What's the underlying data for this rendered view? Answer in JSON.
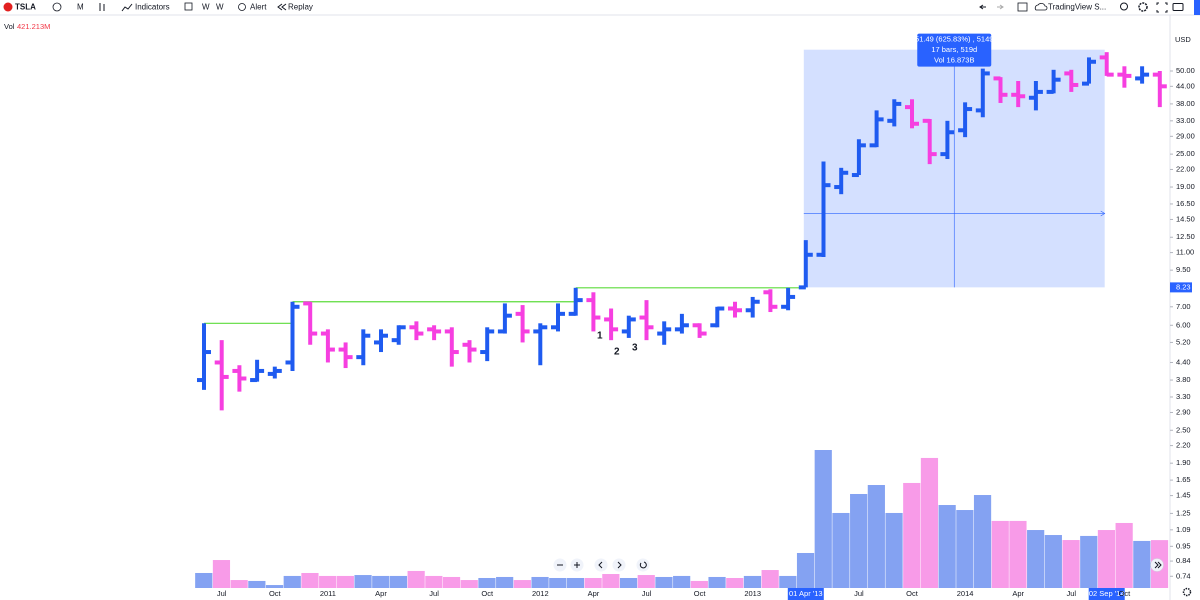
{
  "toolbar": {
    "symbol": "TSLA",
    "interval": "M",
    "indicators": "Indicators",
    "chart_type_a": "W",
    "chart_type_b": "W",
    "alert": "Alert",
    "replay": "Replay",
    "layout_name": "TradingView S..."
  },
  "chart_data": {
    "type": "ohlc",
    "log_scale": true,
    "grid": false,
    "currency": "USD",
    "up_color": "#1f5bf0",
    "down_color": "#f63fe0",
    "categories": [
      null,
      "Jul",
      null,
      null,
      "Oct",
      null,
      null,
      "2011",
      null,
      null,
      "Apr",
      null,
      null,
      "Jul",
      null,
      null,
      "Oct",
      null,
      null,
      "2012",
      null,
      null,
      "Apr",
      null,
      null,
      "Jul",
      null,
      null,
      "Oct",
      null,
      null,
      "2013",
      null,
      null,
      "01 Apr '13",
      null,
      null,
      "Jul",
      null,
      null,
      "Oct",
      null,
      null,
      "2014",
      null,
      null,
      "Apr",
      null,
      null,
      "Jul",
      null,
      "02 Sep '14",
      "Oct",
      null,
      null
    ],
    "open": [
      3.8,
      4.4,
      4.1,
      3.8,
      4.0,
      4.4,
      7.2,
      5.6,
      4.9,
      4.6,
      5.2,
      5.3,
      5.9,
      5.8,
      5.7,
      5.1,
      4.8,
      5.7,
      6.6,
      5.7,
      5.9,
      6.6,
      7.4,
      6.3,
      5.7,
      6.4,
      5.6,
      5.8,
      6.0,
      6.0,
      6.9,
      6.8,
      7.9,
      7.0,
      8.23,
      10.8,
      19,
      21,
      26.9,
      33,
      37,
      33,
      25,
      30.5,
      36,
      47,
      41,
      40,
      42,
      49,
      45,
      56,
      48.5,
      47,
      48.5
    ],
    "high": [
      6.1,
      5.3,
      4.3,
      4.5,
      4.25,
      7.3,
      7.3,
      5.8,
      5.2,
      5.8,
      5.8,
      6.0,
      6.2,
      6.0,
      5.9,
      5.3,
      5.9,
      7.2,
      7.1,
      6.1,
      7.2,
      8.2,
      7.9,
      6.9,
      6.5,
      7.4,
      6.2,
      6.6,
      6.1,
      7.0,
      7.3,
      7.6,
      8.1,
      8.2,
      12.2,
      23.5,
      22.3,
      28.3,
      36,
      39.5,
      39.5,
      33.5,
      33,
      38.5,
      51,
      47.5,
      46,
      46,
      50.5,
      50.5,
      56,
      58.5,
      52,
      52,
      50
    ],
    "low": [
      3.5,
      2.95,
      3.45,
      3.75,
      3.85,
      4.1,
      5.1,
      4.4,
      4.2,
      4.3,
      4.8,
      5.1,
      5.3,
      5.3,
      4.25,
      4.4,
      4.45,
      5.6,
      5.2,
      4.3,
      5.7,
      6.5,
      5.7,
      5.3,
      5.4,
      5.3,
      5.1,
      5.6,
      5.4,
      5.9,
      6.4,
      6.4,
      6.7,
      6.8,
      8.23,
      10.6,
      17.9,
      21,
      26.5,
      31.5,
      31,
      23,
      24,
      28.8,
      34,
      38.3,
      37,
      36,
      41.5,
      42,
      45,
      48,
      43.5,
      45,
      37
    ],
    "close": [
      4.8,
      3.9,
      3.85,
      4.1,
      4.1,
      7.0,
      5.6,
      4.9,
      4.6,
      5.5,
      5.5,
      5.9,
      5.6,
      5.7,
      4.8,
      4.9,
      5.7,
      6.5,
      5.7,
      5.9,
      6.6,
      7.4,
      6.4,
      5.8,
      6.3,
      5.9,
      5.8,
      6.0,
      5.6,
      6.9,
      6.8,
      7.3,
      7.0,
      7.6,
      10.8,
      19.3,
      21.4,
      26.9,
      33.4,
      38,
      32.2,
      25,
      30,
      36.4,
      49,
      41,
      40.5,
      42,
      46.5,
      44.5,
      54,
      48.5,
      48,
      48.5,
      44
    ],
    "volume": {
      "name": "Vol",
      "last_label": "421.213M",
      "up_color": "#84a2f2",
      "down_color": "#f89be8",
      "values": [
        132,
        246,
        70,
        62,
        26,
        106,
        132,
        106,
        106,
        114,
        106,
        106,
        150,
        106,
        97,
        70,
        88,
        97,
        70,
        97,
        88,
        88,
        88,
        123,
        88,
        114,
        97,
        106,
        62,
        97,
        88,
        106,
        158,
        106,
        308,
        1214,
        660,
        827,
        906,
        660,
        924,
        1144,
        730,
        686,
        818,
        590,
        590,
        510,
        466,
        422,
        458,
        510,
        572,
        414,
        421.213
      ]
    },
    "levels": [
      6.1,
      7.3,
      8.2
    ],
    "level_color": "#5ddc3c",
    "measure": {
      "low": 8.23,
      "high": 59.72,
      "label": "51.49 (625.83%) , 5149",
      "bars_label": "17 bars, 519d",
      "vol_label": "Vol 16.873B",
      "color": "#2962ff"
    },
    "annotations": [
      "1",
      "2",
      "3"
    ],
    "ylim": [
      0.66,
      67.5
    ],
    "yticks": [
      {
        "value": 50,
        "label": "50.00"
      },
      {
        "value": 44,
        "label": "44.00"
      },
      {
        "value": 38,
        "label": "38.00"
      },
      {
        "value": 33,
        "label": "33.00"
      },
      {
        "value": 29,
        "label": "29.00"
      },
      {
        "value": 25,
        "label": "25.00"
      },
      {
        "value": 22,
        "label": "22.00"
      },
      {
        "value": 19,
        "label": "19.00"
      },
      {
        "value": 16.5,
        "label": "16.50"
      },
      {
        "value": 14.5,
        "label": "14.50"
      },
      {
        "value": 12.5,
        "label": "12.50"
      },
      {
        "value": 11,
        "label": "11.00"
      },
      {
        "value": 9.5,
        "label": "9.50"
      },
      {
        "value": 7,
        "label": "7.00"
      },
      {
        "value": 6,
        "label": "6.00"
      },
      {
        "value": 5.2,
        "label": "5.20"
      },
      {
        "value": 4.4,
        "label": "4.40"
      },
      {
        "value": 3.8,
        "label": "3.80"
      },
      {
        "value": 3.3,
        "label": "3.30"
      },
      {
        "value": 2.9,
        "label": "2.90"
      },
      {
        "value": 2.5,
        "label": "2.50"
      },
      {
        "value": 2.2,
        "label": "2.20"
      },
      {
        "value": 1.9,
        "label": "1.90"
      },
      {
        "value": 1.65,
        "label": "1.65"
      },
      {
        "value": 1.45,
        "label": "1.45"
      },
      {
        "value": 1.25,
        "label": "1.25"
      },
      {
        "value": 1.09,
        "label": "1.09"
      },
      {
        "value": 0.95,
        "label": "0.95"
      },
      {
        "value": 0.84,
        "label": "0.84"
      },
      {
        "value": 0.74,
        "label": "0.74"
      }
    ]
  }
}
